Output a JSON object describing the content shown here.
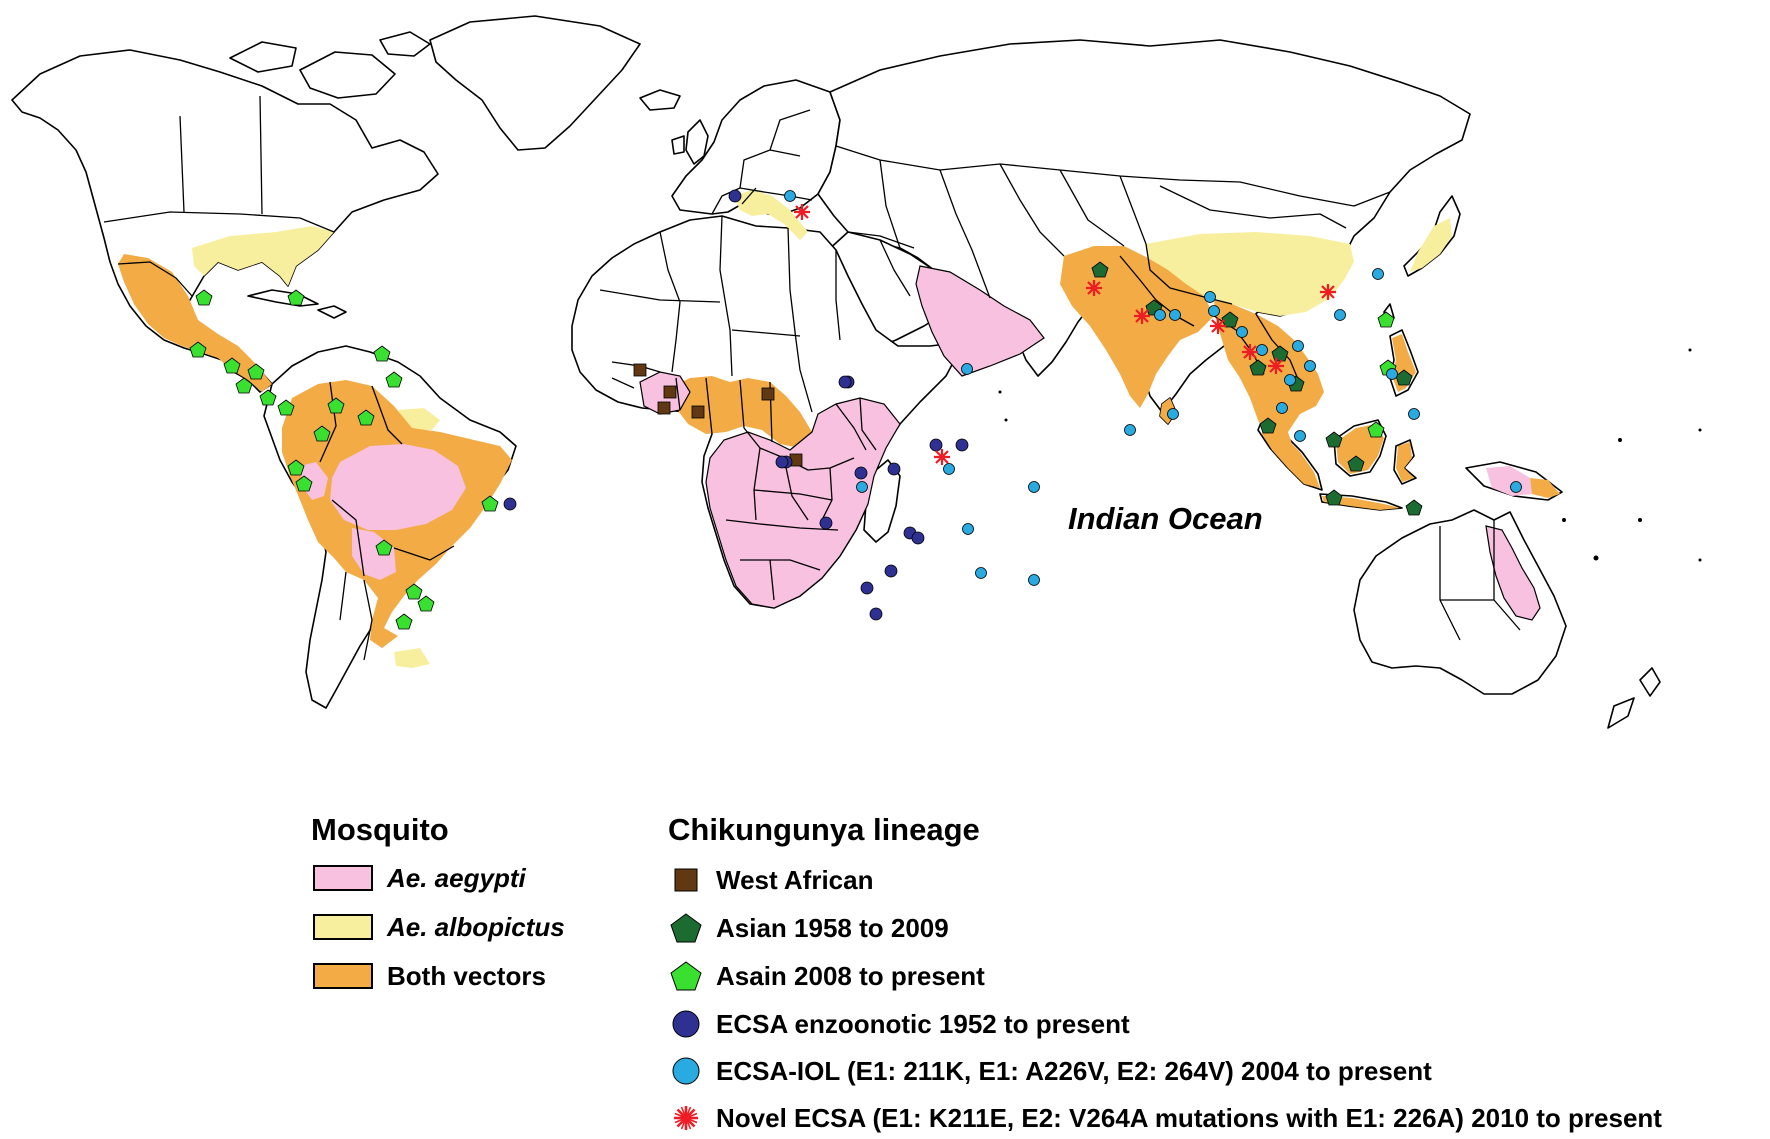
{
  "map": {
    "ocean_label": "Indian Ocean",
    "colors": {
      "ae_aegypti": "#f7c1df",
      "ae_albopictus": "#f8ef9e",
      "both_vectors": "#f2ab45",
      "land": "#ffffff",
      "outline": "#000000"
    },
    "symbol_colors": {
      "west_african": "#603913",
      "asian_1958": "#1c6b30",
      "asian_2008": "#39e030",
      "ecsa_enzoonotic": "#2e3192",
      "ecsa_iol": "#29abe2",
      "novel_ecsa": "#ee1c24"
    }
  },
  "legend": {
    "mosquito": {
      "heading": "Mosquito",
      "items": [
        {
          "label": "Ae. aegypti",
          "color": "#f7c1df"
        },
        {
          "label": "Ae. albopictus",
          "color": "#f8ef9e"
        },
        {
          "label": "Both vectors",
          "color": "#f2ab45"
        }
      ]
    },
    "lineage": {
      "heading": "Chikungunya lineage",
      "items": [
        {
          "label": "West African",
          "symbol": "square-icon"
        },
        {
          "label": "Asian 1958 to 2009",
          "symbol": "pentagon-icon"
        },
        {
          "label": "Asain 2008 to present",
          "symbol": "pentagon-icon"
        },
        {
          "label": "ECSA enzoonotic 1952 to present",
          "symbol": "circle-icon"
        },
        {
          "label": "ECSA-IOL (E1: 211K, E1: A226V, E2: 264V) 2004 to present",
          "symbol": "circle-icon"
        },
        {
          "label": "Novel ECSA (E1: K211E, E2: V264A mutations with E1: 226A) 2010 to present",
          "symbol": "starburst-icon"
        }
      ]
    }
  }
}
